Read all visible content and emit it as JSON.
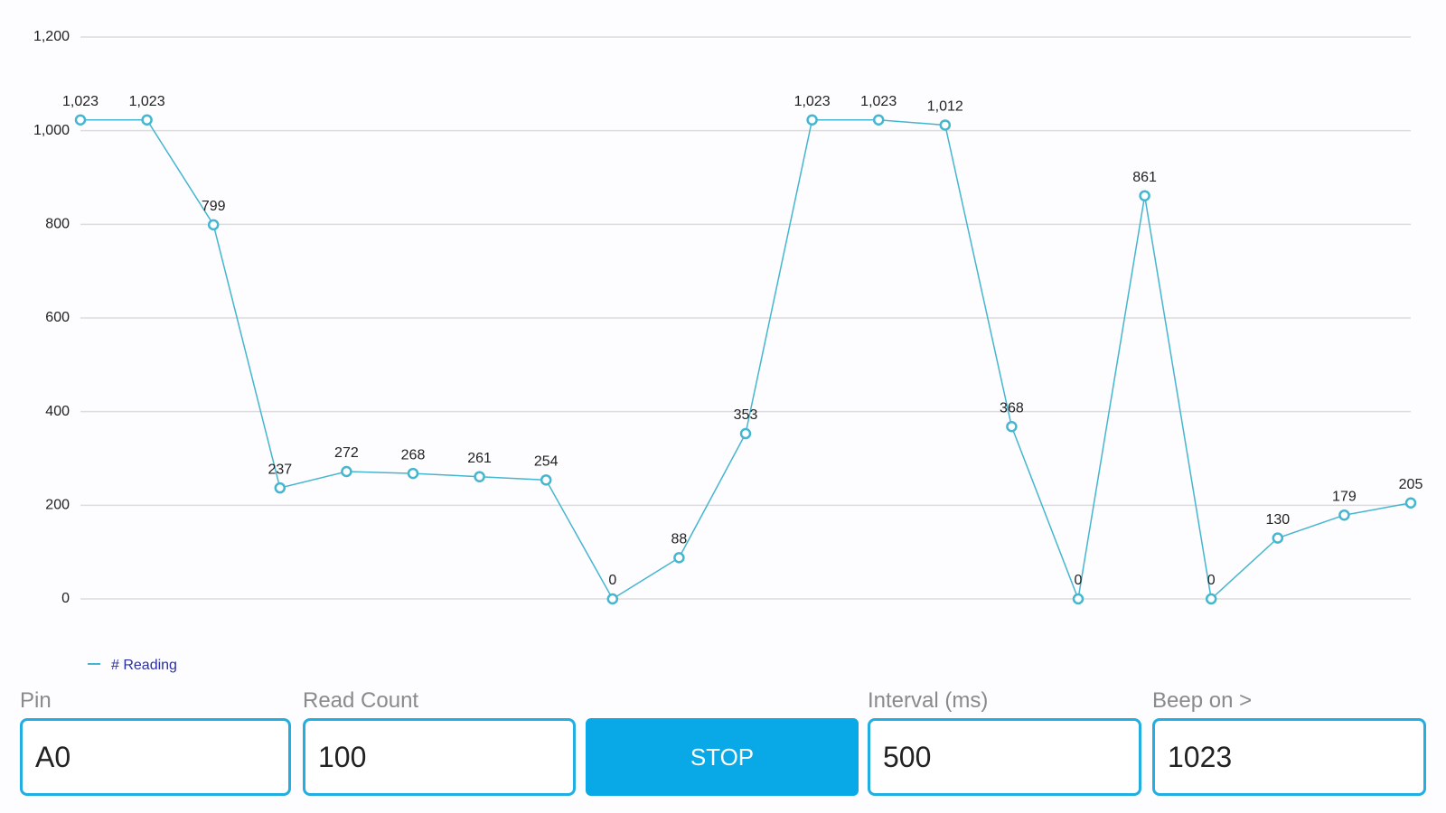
{
  "chart_data": {
    "type": "line",
    "categories": [
      null,
      null,
      null,
      null,
      null,
      null,
      null,
      null,
      null,
      null,
      null,
      null,
      null,
      null,
      null,
      null,
      null,
      null,
      null,
      null,
      null
    ],
    "series": [
      {
        "name": "# Reading",
        "color": "#45b6cf",
        "values": [
          1023,
          1023,
          799,
          237,
          272,
          268,
          261,
          254,
          0,
          88,
          353,
          1023,
          1023,
          1012,
          368,
          0,
          861,
          0,
          130,
          179,
          205
        ],
        "value_labels": [
          "1,023",
          "1,023",
          "799",
          "237",
          "272",
          "268",
          "261",
          "254",
          "0",
          "88",
          "353",
          "1,023",
          "1,023",
          "1,012",
          "368",
          "0",
          "861",
          "0",
          "130",
          "179",
          "205"
        ]
      }
    ],
    "ylim": [
      0,
      1200
    ],
    "yticks": [
      0,
      200,
      400,
      600,
      800,
      {
        "value": 1000,
        "label": "1,000"
      },
      {
        "value": 1200,
        "label": "1,200"
      }
    ],
    "grid": true,
    "legend": "bottom-left"
  },
  "form": {
    "fields": [
      {
        "label": "Pin",
        "value": "A0"
      },
      {
        "label": "Read Count",
        "value": "100"
      },
      {
        "label": "Interval (ms)",
        "value": "500"
      },
      {
        "label": "Beep on >",
        "value": "1023"
      }
    ],
    "button": "STOP"
  }
}
